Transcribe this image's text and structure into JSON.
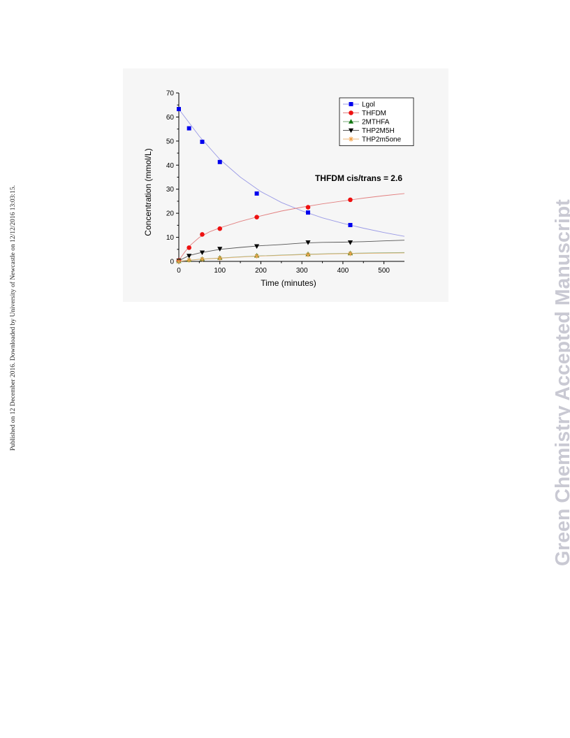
{
  "side_note": "Published on 12 December 2016. Downloaded by University of Newcastle on 12/12/2016 13:03:15.",
  "watermark": "Green Chemistry Accepted Manuscript",
  "chart_data": {
    "type": "line",
    "title": "",
    "xlabel": "Time (minutes)",
    "ylabel": "Concentration (mmol/L)",
    "xlim": [
      0,
      550
    ],
    "ylim": [
      0,
      70
    ],
    "xticks": [
      0,
      100,
      200,
      300,
      400,
      500
    ],
    "yticks": [
      0,
      10,
      20,
      30,
      40,
      50,
      60,
      70
    ],
    "grid": false,
    "legend_position": "top-right",
    "annotation": "THFDM cis/trans = 2.6",
    "series": [
      {
        "name": "Lgol",
        "color": "#0000ee",
        "line_color": "#9a9ae6",
        "marker": "square",
        "points": [
          [
            0,
            63.3
          ],
          [
            25,
            55.3
          ],
          [
            57,
            49.7
          ],
          [
            100,
            41.3
          ],
          [
            190,
            28.2
          ],
          [
            315,
            20.3
          ],
          [
            418,
            15.1
          ]
        ],
        "fit": [
          [
            0,
            63.3
          ],
          [
            50,
            52.0
          ],
          [
            100,
            42.4
          ],
          [
            150,
            35.0
          ],
          [
            200,
            29.0
          ],
          [
            250,
            24.5
          ],
          [
            300,
            21.0
          ],
          [
            350,
            18.1
          ],
          [
            400,
            15.8
          ],
          [
            450,
            13.8
          ],
          [
            500,
            12.0
          ],
          [
            550,
            10.4
          ]
        ]
      },
      {
        "name": "THFDM",
        "color": "#ee1111",
        "line_color": "#e27f7f",
        "marker": "circle",
        "points": [
          [
            0,
            0.4
          ],
          [
            25,
            5.7
          ],
          [
            57,
            11.2
          ],
          [
            100,
            13.6
          ],
          [
            190,
            18.4
          ],
          [
            315,
            22.5
          ],
          [
            418,
            25.6
          ]
        ],
        "fit": [
          [
            0,
            0.4
          ],
          [
            15,
            4.0
          ],
          [
            30,
            7.0
          ],
          [
            50,
            10.0
          ],
          [
            75,
            12.3
          ],
          [
            100,
            13.9
          ],
          [
            150,
            16.6
          ],
          [
            200,
            18.9
          ],
          [
            250,
            20.9
          ],
          [
            300,
            22.5
          ],
          [
            350,
            23.9
          ],
          [
            400,
            25.1
          ],
          [
            450,
            26.3
          ],
          [
            500,
            27.3
          ],
          [
            550,
            28.2
          ]
        ]
      },
      {
        "name": "2MTHFA",
        "color": "#117711",
        "line_color": "#7aa97a",
        "marker": "triangle-up",
        "points": [
          [
            0,
            0.1
          ],
          [
            25,
            0.6
          ],
          [
            57,
            1.0
          ],
          [
            100,
            1.5
          ],
          [
            190,
            2.4
          ],
          [
            315,
            3.0
          ],
          [
            418,
            3.4
          ]
        ],
        "fit": [
          [
            0,
            0.1
          ],
          [
            50,
            0.9
          ],
          [
            100,
            1.4
          ],
          [
            150,
            1.9
          ],
          [
            200,
            2.3
          ],
          [
            300,
            2.9
          ],
          [
            400,
            3.3
          ],
          [
            550,
            3.7
          ]
        ]
      },
      {
        "name": "THP2M5H",
        "color": "#000000",
        "line_color": "#555555",
        "marker": "triangle-down",
        "points": [
          [
            0,
            0.3
          ],
          [
            25,
            2.3
          ],
          [
            57,
            3.7
          ],
          [
            100,
            5.2
          ],
          [
            190,
            6.3
          ],
          [
            315,
            7.9
          ],
          [
            418,
            7.9
          ]
        ],
        "fit": [
          [
            0,
            0.3
          ],
          [
            25,
            2.4
          ],
          [
            50,
            3.5
          ],
          [
            100,
            5.0
          ],
          [
            150,
            5.8
          ],
          [
            200,
            6.5
          ],
          [
            250,
            7.0
          ],
          [
            300,
            7.6
          ],
          [
            350,
            7.9
          ],
          [
            400,
            8.0
          ],
          [
            450,
            8.2
          ],
          [
            500,
            8.5
          ],
          [
            550,
            8.8
          ]
        ]
      },
      {
        "name": "THP2m5one",
        "color": "#f2a24a",
        "line_color": "#e8b77a",
        "marker": "asterisk",
        "points": [
          [
            0,
            0.0
          ],
          [
            25,
            0.5
          ],
          [
            57,
            0.9
          ],
          [
            100,
            1.3
          ],
          [
            190,
            2.2
          ],
          [
            315,
            2.8
          ],
          [
            418,
            3.2
          ]
        ],
        "fit": [
          [
            0,
            0.0
          ],
          [
            50,
            0.8
          ],
          [
            100,
            1.3
          ],
          [
            150,
            1.8
          ],
          [
            200,
            2.2
          ],
          [
            300,
            2.8
          ],
          [
            400,
            3.2
          ],
          [
            550,
            3.5
          ]
        ]
      }
    ]
  }
}
